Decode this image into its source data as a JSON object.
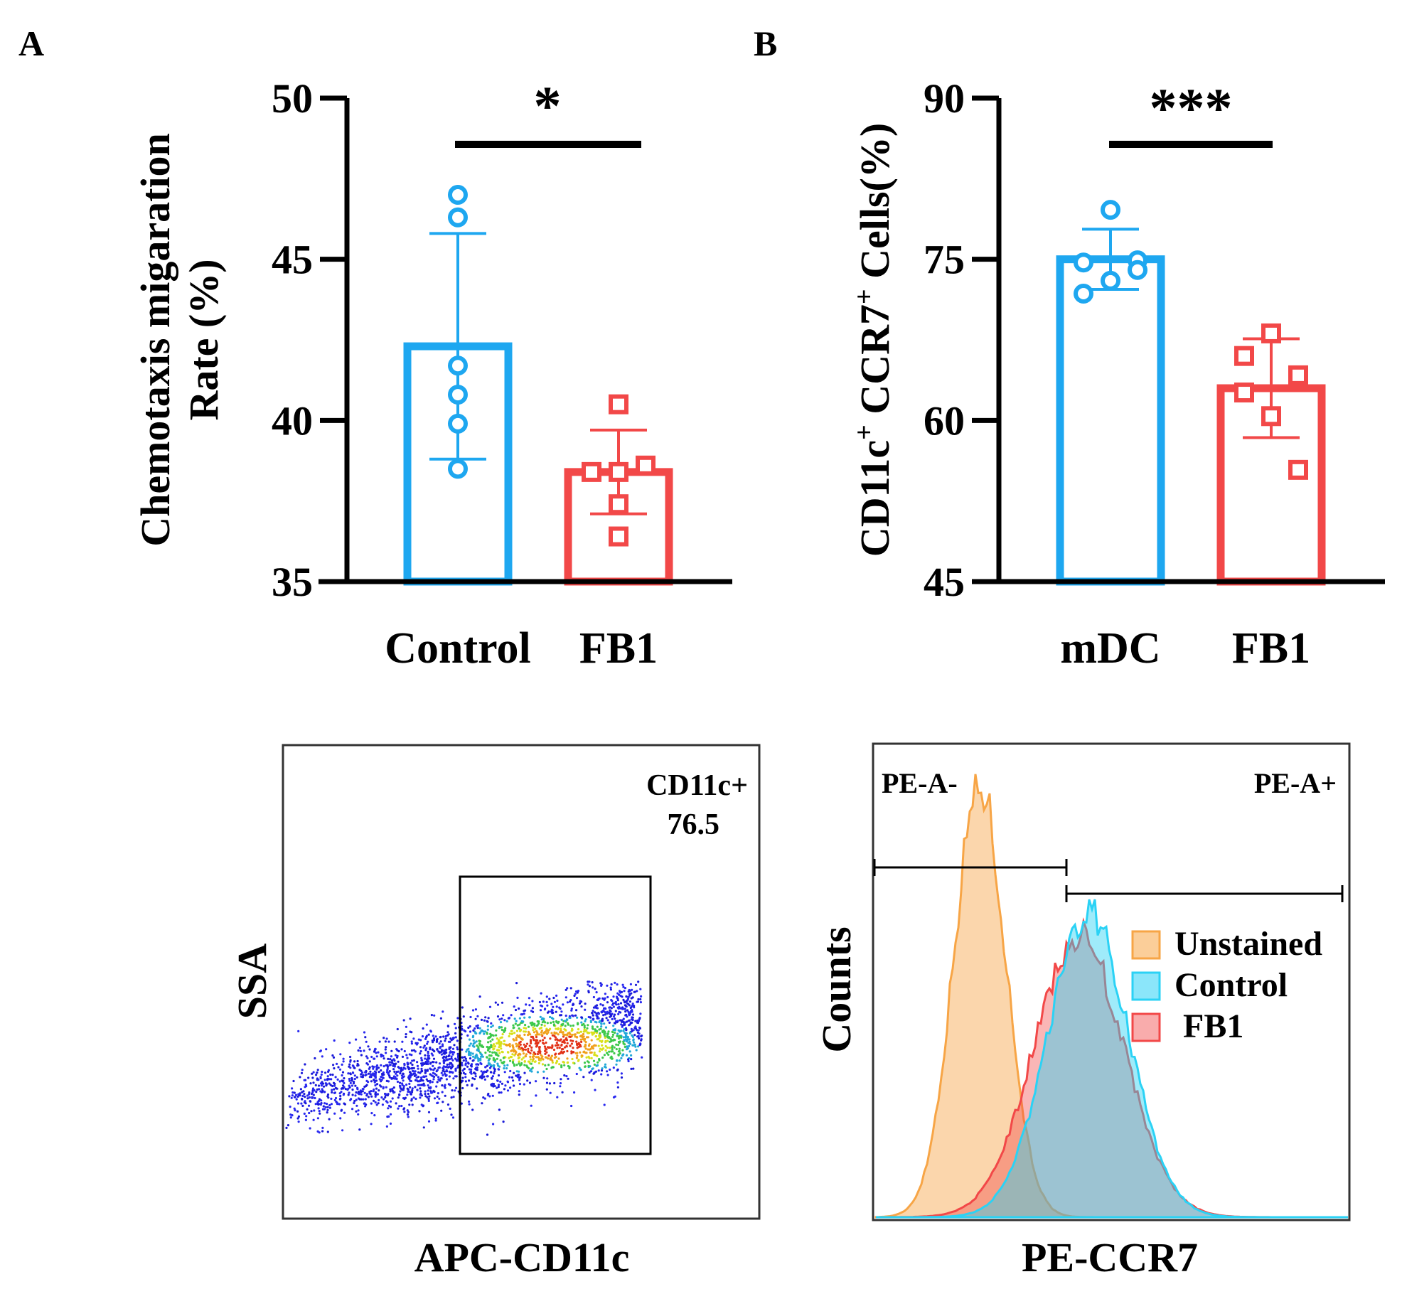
{
  "colors": {
    "blue": "#1ea7f0",
    "red": "#f24848",
    "orange": "#f7a546",
    "cyan": "#2bd2f5",
    "axis": "#000000"
  },
  "panels": {
    "a_letter": "A",
    "b_letter": "B"
  },
  "chart_data": [
    {
      "id": "A",
      "type": "bar",
      "ylabel": "Chemotaxis migaration Rate (%)",
      "ylabel_line1": "Chemotaxis migaration",
      "ylabel_line2": "Rate (%)",
      "ylim": [
        35,
        50
      ],
      "yticks": [
        35,
        40,
        45,
        50
      ],
      "categories": [
        "Control",
        "FB1"
      ],
      "values": [
        42.3,
        38.4
      ],
      "err_low": [
        38.8,
        37.1
      ],
      "err_high": [
        45.8,
        39.7
      ],
      "points": [
        [
          47.0,
          46.3,
          41.7,
          40.8,
          39.9,
          38.5
        ],
        [
          40.5,
          38.4,
          38.4,
          38.6,
          37.4,
          36.4
        ]
      ],
      "significance": "*"
    },
    {
      "id": "B",
      "type": "bar",
      "ylabel": "CD11c+ CCR7+ Cells(%)",
      "ylabel_parts": [
        "CD11c",
        "+",
        " CCR7",
        "+",
        " Cells(%)"
      ],
      "ylim": [
        45,
        90
      ],
      "yticks": [
        45,
        60,
        75,
        90
      ],
      "categories": [
        "mDC",
        "FB1"
      ],
      "values": [
        75,
        63
      ],
      "err_low": [
        72.2,
        58.4
      ],
      "err_high": [
        77.8,
        67.6
      ],
      "points": [
        [
          79.6,
          74.7,
          74.9,
          73.0,
          71.8,
          74.0
        ],
        [
          68.1,
          66.0,
          64.2,
          60.4,
          62.6,
          55.4
        ]
      ],
      "significance": "***"
    },
    {
      "id": "C",
      "type": "scatter",
      "xlabel": "APC-CD11c",
      "ylabel": "SSA",
      "gate_label": "CD11c+",
      "gate_value": "76.5"
    },
    {
      "id": "D",
      "type": "area",
      "xlabel": "PE-CCR7",
      "ylabel": "Counts",
      "gate_left_label": "PE-A-",
      "gate_right_label": "PE-A+",
      "series": [
        {
          "name": "Unstained",
          "mode": 0.22,
          "width": 0.055,
          "peak": 0.92
        },
        {
          "name": "Control",
          "mode": 0.45,
          "width": 0.085,
          "peak": 0.65
        },
        {
          "name": "FB1",
          "mode": 0.43,
          "width": 0.095,
          "peak": 0.6
        }
      ],
      "legend": [
        "Unstained",
        "Control",
        "FB1"
      ]
    }
  ]
}
